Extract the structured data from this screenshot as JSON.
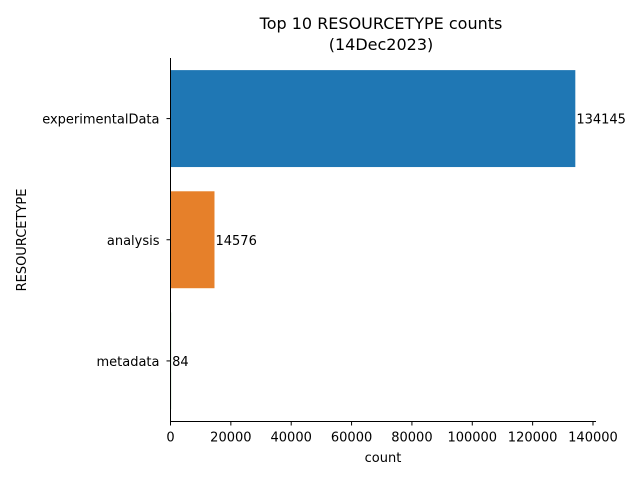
{
  "chart_data": {
    "type": "bar",
    "orientation": "horizontal",
    "title_lines": [
      "Top 10 RESOURCETYPE counts",
      "(14Dec2023)"
    ],
    "categories": [
      "experimentalData",
      "analysis",
      "metadata"
    ],
    "values": [
      134145,
      14576,
      84
    ],
    "data_labels": [
      "134145",
      "14576",
      "84"
    ],
    "colors": [
      "#1f77b4",
      "#e6802a",
      "#3aa03a"
    ],
    "xlabel": "count",
    "ylabel": "RESOURCETYPE",
    "xlim": [
      0,
      141000
    ],
    "xticks": [
      0,
      20000,
      40000,
      60000,
      80000,
      100000,
      120000,
      140000
    ],
    "xtick_labels": [
      "0",
      "20000",
      "40000",
      "60000",
      "80000",
      "100000",
      "120000",
      "140000"
    ],
    "grid": false,
    "legend": "none"
  }
}
